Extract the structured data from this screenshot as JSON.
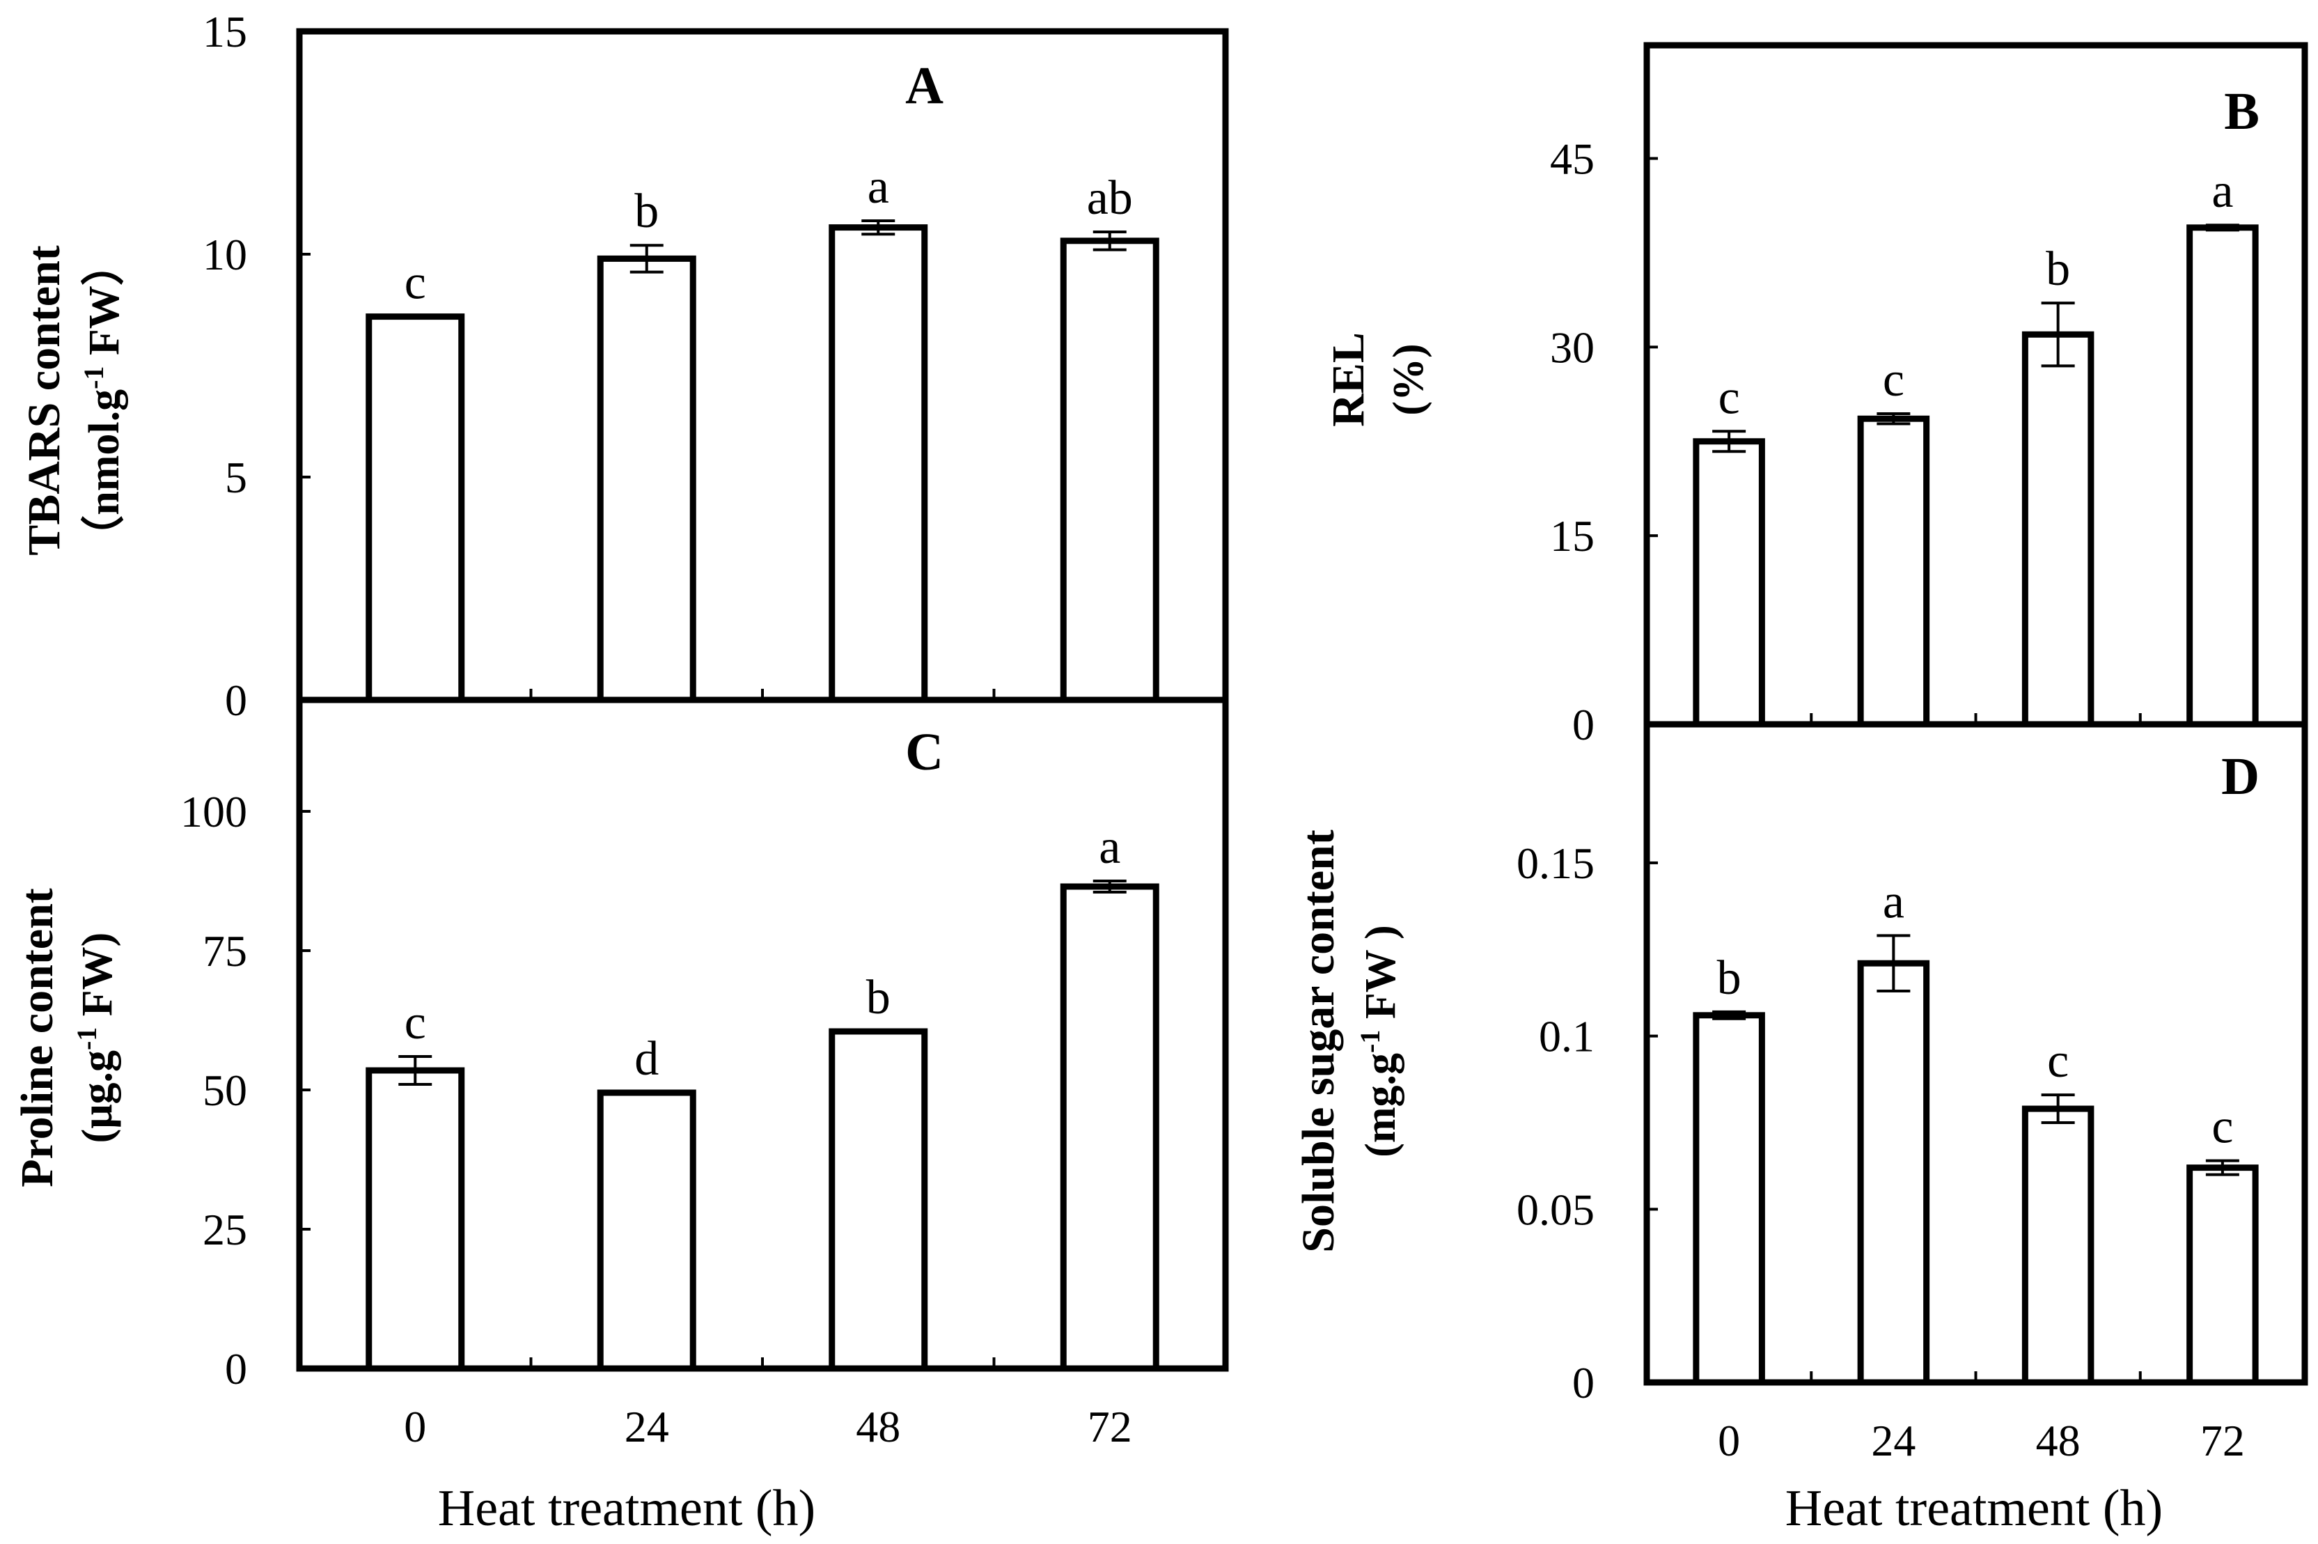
{
  "chart_data": [
    {
      "panel": "A",
      "type": "bar",
      "categories": [
        "0",
        "24",
        "48",
        "72"
      ],
      "values": [
        8.6,
        9.9,
        10.6,
        10.3
      ],
      "errors": [
        0.0,
        0.3,
        0.15,
        0.2
      ],
      "significance": [
        "c",
        "b",
        "a",
        "ab"
      ],
      "ylabel": "TBARS content",
      "yunit_prefix": "（nmol.g",
      "yunit_sup": "-1",
      "yunit_suffix": " FW）",
      "ylim": [
        0,
        15
      ],
      "yticks": [
        0,
        5,
        10,
        15
      ],
      "ytick_labels": [
        "0",
        "5",
        "10",
        "15"
      ]
    },
    {
      "panel": "B",
      "type": "bar",
      "categories": [
        "0",
        "24",
        "48",
        "72"
      ],
      "values": [
        22.5,
        24.3,
        31.0,
        39.5
      ],
      "errors": [
        0.8,
        0.4,
        2.5,
        0.2
      ],
      "significance": [
        "c",
        "c",
        "b",
        "a"
      ],
      "ylabel": "REL",
      "yunit_prefix": "(%)",
      "yunit_sup": "",
      "yunit_suffix": "",
      "ylim": [
        0,
        54
      ],
      "yticks": [
        0,
        15,
        30,
        45
      ],
      "ytick_labels": [
        "0",
        "15",
        "30",
        "45"
      ]
    },
    {
      "panel": "C",
      "type": "bar",
      "categories": [
        "0",
        "24",
        "48",
        "72"
      ],
      "values": [
        53.5,
        49.5,
        60.5,
        86.5
      ],
      "errors": [
        2.5,
        0.0,
        0.0,
        1.0
      ],
      "significance": [
        "c",
        "d",
        "b",
        "a"
      ],
      "ylabel": "Proline content",
      "yunit_prefix": "(μg.g",
      "yunit_sup": "-1",
      "yunit_suffix": " FW)",
      "ylim": [
        0,
        120
      ],
      "yticks": [
        0,
        25,
        50,
        75,
        100
      ],
      "ytick_labels": [
        "0",
        "25",
        "50",
        "75",
        "100"
      ]
    },
    {
      "panel": "D",
      "type": "bar",
      "categories": [
        "0",
        "24",
        "48",
        "72"
      ],
      "values": [
        0.106,
        0.121,
        0.079,
        0.062
      ],
      "errors": [
        0.001,
        0.008,
        0.004,
        0.002
      ],
      "significance": [
        "b",
        "a",
        "c",
        "c"
      ],
      "ylabel": "Soluble sugar content",
      "yunit_prefix": "(mg.g",
      "yunit_sup": "-1",
      "yunit_suffix": " FW )",
      "ylim": [
        0,
        0.19
      ],
      "yticks": [
        0,
        0.05,
        0.1,
        0.15
      ],
      "ytick_labels": [
        "0",
        "0.05",
        "0.1",
        "0.15"
      ]
    }
  ],
  "xlabel": "Heat treatment (h)"
}
